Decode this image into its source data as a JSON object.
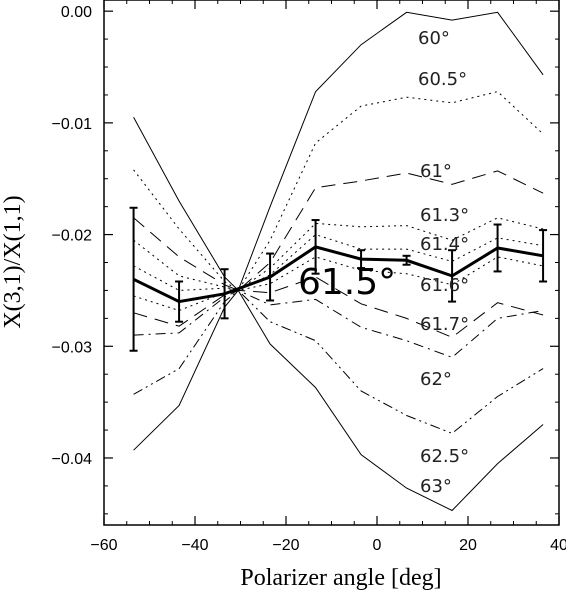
{
  "chart_data": {
    "type": "line",
    "xlabel": "Polarizer angle [deg]",
    "ylabel": "X(3,1)/X(1,1)",
    "xlim": [
      -60,
      40
    ],
    "ylim": [
      -0.046,
      0.001
    ],
    "xticks": [
      -60,
      -40,
      -20,
      0,
      20,
      40
    ],
    "yticks": [
      0.0,
      -0.01,
      -0.02,
      -0.03,
      -0.04
    ],
    "xtick_labels": [
      "−60",
      "−40",
      "−20",
      "0",
      "20",
      "40"
    ],
    "ytick_labels": [
      "0.00",
      "−0.01",
      "−0.02",
      "−0.03",
      "−0.04"
    ],
    "x": [
      -53.5,
      -43.5,
      -33.5,
      -30.5,
      -23.5,
      -13.5,
      -3.5,
      6.5,
      16.5,
      26.5,
      36.5
    ],
    "series": [
      {
        "name": "60°",
        "style": "solid",
        "values": [
          -0.0095,
          -0.017,
          -0.0238,
          -0.025,
          -0.0175,
          -0.0072,
          -0.003,
          -0.0001,
          -0.0008,
          -0.0001,
          -0.0057
        ]
      },
      {
        "name": "60.5°",
        "style": "dot",
        "values": [
          -0.0142,
          -0.0195,
          -0.0242,
          -0.025,
          -0.0205,
          -0.0118,
          -0.0085,
          -0.0077,
          -0.0082,
          -0.0072,
          -0.011
        ]
      },
      {
        "name": "61°",
        "style": "longdash",
        "values": [
          -0.0185,
          -0.022,
          -0.0245,
          -0.025,
          -0.0225,
          -0.0158,
          -0.0152,
          -0.0145,
          -0.0155,
          -0.0143,
          -0.0163
        ]
      },
      {
        "name": "61.3°",
        "style": "dot",
        "values": [
          -0.0205,
          -0.0237,
          -0.0247,
          -0.025,
          -0.023,
          -0.019,
          -0.0193,
          -0.0192,
          -0.0205,
          -0.0185,
          -0.0195
        ]
      },
      {
        "name": "61.4°",
        "style": "dot",
        "values": [
          -0.0228,
          -0.025,
          -0.0248,
          -0.025,
          -0.0236,
          -0.02,
          -0.0213,
          -0.0213,
          -0.0224,
          -0.0203,
          -0.021
        ]
      },
      {
        "name": "61.6°",
        "style": "dot",
        "values": [
          -0.0255,
          -0.0268,
          -0.0252,
          -0.025,
          -0.0244,
          -0.022,
          -0.0232,
          -0.0235,
          -0.0245,
          -0.022,
          -0.0228
        ]
      },
      {
        "name": "61.7°",
        "style": "longdash",
        "values": [
          -0.027,
          -0.0282,
          -0.0254,
          -0.025,
          -0.0252,
          -0.0238,
          -0.0262,
          -0.0275,
          -0.0292,
          -0.0261,
          -0.0272
        ]
      },
      {
        "name": "62°",
        "style": "dashdot",
        "values": [
          -0.029,
          -0.0288,
          -0.0256,
          -0.025,
          -0.0263,
          -0.0258,
          -0.0283,
          -0.0295,
          -0.031,
          -0.0275,
          -0.0268
        ]
      },
      {
        "name": "62.5°",
        "style": "dashdotdot",
        "values": [
          -0.0343,
          -0.032,
          -0.026,
          -0.025,
          -0.0278,
          -0.0295,
          -0.034,
          -0.0362,
          -0.0378,
          -0.0345,
          -0.032
        ]
      },
      {
        "name": "63°",
        "style": "solid",
        "values": [
          -0.0393,
          -0.0353,
          -0.0265,
          -0.025,
          -0.0298,
          -0.0337,
          -0.0397,
          -0.0427,
          -0.0447,
          -0.0405,
          -0.037
        ]
      }
    ],
    "measured": {
      "name": "61.5°",
      "x": [
        -53.5,
        -43.5,
        -33.5,
        -23.5,
        -13.5,
        -3.5,
        6.5,
        16.5,
        26.5,
        36.5
      ],
      "values": [
        -0.024,
        -0.026,
        -0.0253,
        -0.0238,
        -0.0211,
        -0.0222,
        -0.0223,
        -0.0237,
        -0.0212,
        -0.0219
      ],
      "err": [
        0.0064,
        0.0018,
        0.0022,
        0.0021,
        0.0024,
        0.0008,
        0.0004,
        0.0023,
        0.0021,
        0.0023
      ]
    },
    "grid": false,
    "legend": "inline labels"
  }
}
